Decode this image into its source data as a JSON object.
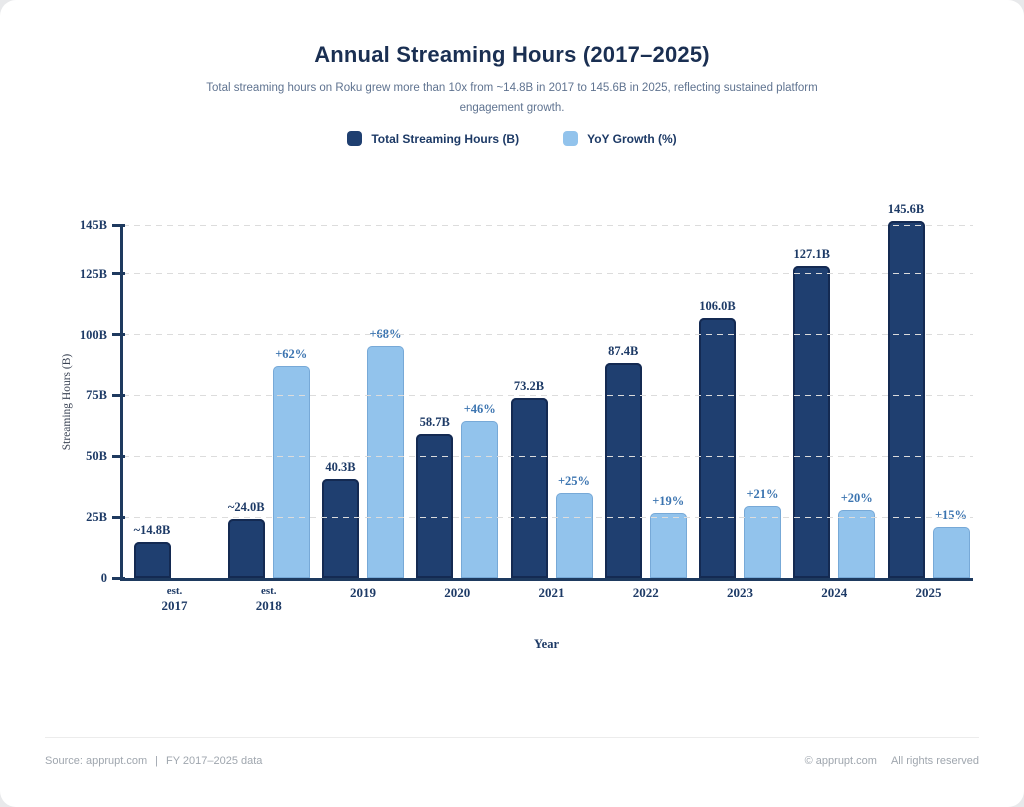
{
  "page": {
    "title": "Annual Streaming Hours (2017–2025)",
    "subtitle": "Total streaming hours on Roku grew more than 10x from ~14.8B in 2017 to 145.6B in 2025, reflecting sustained platform engagement growth."
  },
  "colors": {
    "primary_bar": "#1f3f70",
    "secondary_bar": "#92c3ec",
    "axis": "#1e3a5f",
    "title_text": "#1a2f52",
    "growth_label": "#3b74b0"
  },
  "chart_data": {
    "type": "bar",
    "title": "Annual Streaming Hours (2017–2025)",
    "xlabel": "Year",
    "ylabel": "Streaming Hours (B)",
    "categories": [
      "2017",
      "2018",
      "2019",
      "2020",
      "2021",
      "2022",
      "2023",
      "2024",
      "2025"
    ],
    "category_prefixes": [
      "est.",
      "est.",
      "",
      "",
      "",
      "",
      "",
      "",
      ""
    ],
    "series": [
      {
        "name": "Total Streaming Hours (B)",
        "color": "#1f3f70",
        "values": [
          14.8,
          24.0,
          40.3,
          58.7,
          73.2,
          87.4,
          106.0,
          127.1,
          145.6
        ],
        "labels": [
          "~14.8B",
          "~24.0B",
          "40.3B",
          "58.7B",
          "73.2B",
          "87.4B",
          "106.0B",
          "127.1B",
          "145.6B"
        ]
      },
      {
        "name": "YoY Growth (%)",
        "color": "#92c3ec",
        "values": [
          null,
          62,
          68,
          46,
          25,
          19,
          21,
          20,
          15
        ],
        "labels": [
          null,
          "+62%",
          "+68%",
          "+46%",
          "+25%",
          "+19%",
          "+21%",
          "+20%",
          "+15%"
        ]
      }
    ],
    "y_axis": {
      "max": 145,
      "ticks": [
        0,
        25,
        50,
        75,
        100,
        125,
        145
      ],
      "tick_labels": [
        "0",
        "25B",
        "50B",
        "75B",
        "100B",
        "125B",
        "145B"
      ]
    },
    "secondary_scale_b_per_pct": 1.39,
    "grid": "horizontal dashed",
    "legend_position": "top"
  },
  "footer": {
    "left_source": "Source: apprupt.com",
    "left_separator": "|",
    "left_data": "FY 2017–2025 data",
    "right_copyright": "© apprupt.com",
    "right_rights": "All rights reserved"
  }
}
